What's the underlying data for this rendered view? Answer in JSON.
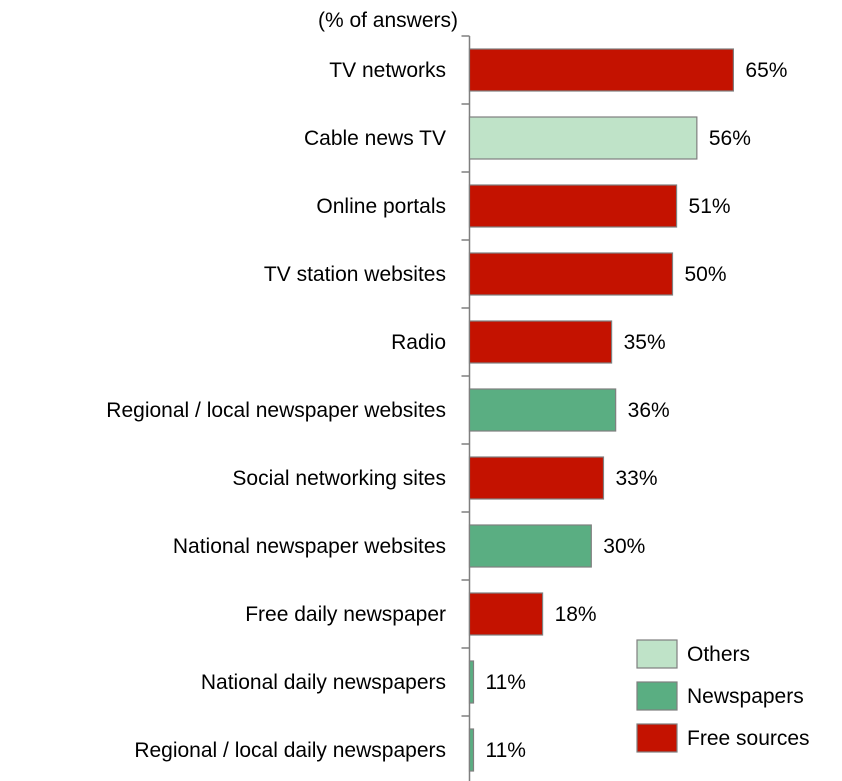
{
  "chart_data": {
    "type": "bar",
    "orientation": "horizontal",
    "unit_note": "(% of answers)",
    "categories": [
      "TV networks",
      "Cable news TV",
      "Online portals",
      "TV station websites",
      "Radio",
      "Regional / local newspaper websites",
      "Social networking sites",
      "National newspaper websites",
      "Free daily newspaper",
      "National daily newspapers",
      "Regional / local daily newspapers"
    ],
    "values": [
      65,
      56,
      51,
      50,
      35,
      36,
      33,
      30,
      18,
      11,
      11
    ],
    "value_labels": [
      "65%",
      "56%",
      "51%",
      "50%",
      "35%",
      "36%",
      "33%",
      "30%",
      "18%",
      "11%",
      "11%"
    ],
    "bar_group": [
      "Free sources",
      "Others",
      "Free sources",
      "Free sources",
      "Free sources",
      "Newspapers",
      "Free sources",
      "Newspapers",
      "Free sources",
      "Newspapers",
      "Newspapers"
    ],
    "legend": {
      "position": "bottom-right",
      "entries": [
        {
          "label": "Others",
          "color": "#bfe3c8"
        },
        {
          "label": "Newspapers",
          "color": "#5aae82"
        },
        {
          "label": "Free sources",
          "color": "#c41200"
        }
      ]
    },
    "colors": {
      "Free sources": "#c41200",
      "Others": "#bfe3c8",
      "Newspapers": "#5aae82",
      "bar_outline": "#7f7f7f",
      "axis": "#7f7f7f"
    },
    "grid": false,
    "xlim": [
      0,
      100
    ]
  }
}
